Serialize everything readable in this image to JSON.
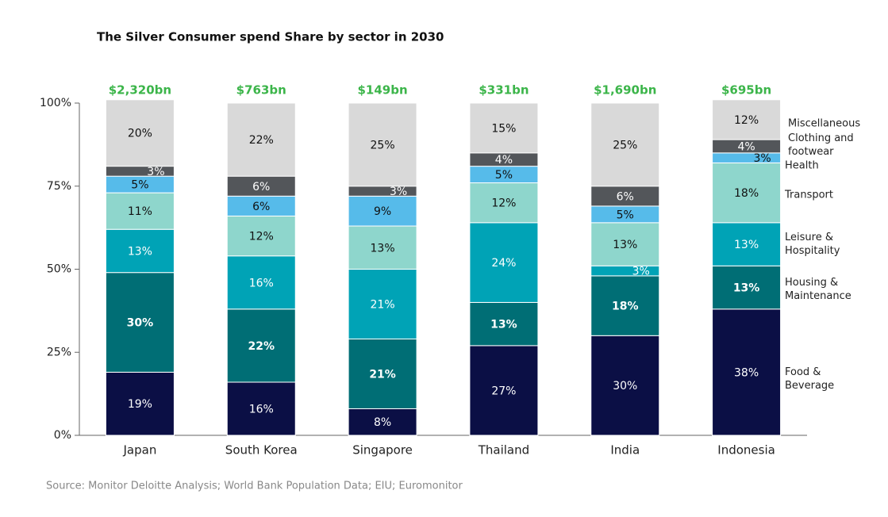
{
  "chart_data": {
    "type": "stacked_bar",
    "title": "The Silver Consumer spend Share by sector in 2030",
    "source": "Source: Monitor Deloitte Analysis; World Bank Population Data; EIU; Euromonitor",
    "categories": [
      "Japan",
      "South Korea",
      "Singapore",
      "Thailand",
      "India",
      "Indonesia"
    ],
    "totals": {
      "values": [
        2320,
        763,
        149,
        331,
        1690,
        695
      ],
      "value_labels": [
        "$2,320bn",
        "$763bn",
        "$149bn",
        "$331bn",
        "$1,690bn",
        "$695bn"
      ],
      "color": "#3cb54a"
    },
    "series": [
      {
        "name": "Food & Beverage",
        "color": "#0b0f45",
        "values": [
          19,
          16,
          8,
          27,
          30,
          38
        ],
        "value_labels": [
          "19%",
          "16%",
          "8%",
          "27%",
          "30%",
          "38%"
        ]
      },
      {
        "name": "Housing & Maintenance",
        "color": "#006e75",
        "values": [
          30,
          22,
          21,
          13,
          18,
          13
        ],
        "value_labels": [
          "30%",
          "22%",
          "21%",
          "13%",
          "18%",
          "13%"
        ]
      },
      {
        "name": "Leisure & Hospitality",
        "color": "#00a3b6",
        "values": [
          13,
          16,
          21,
          24,
          3,
          13
        ],
        "value_labels": [
          "13%",
          "16%",
          "21%",
          "24%",
          "3%",
          "13%"
        ]
      },
      {
        "name": "Transport",
        "color": "#8ed6cc",
        "values": [
          11,
          12,
          13,
          12,
          13,
          18
        ],
        "value_labels": [
          "11%",
          "12%",
          "13%",
          "12%",
          "13%",
          "18%"
        ]
      },
      {
        "name": "Health",
        "color": "#56bbea",
        "values": [
          5,
          6,
          9,
          5,
          5,
          3
        ],
        "value_labels": [
          "5%",
          "6%",
          "9%",
          "5%",
          "5%",
          "3%"
        ]
      },
      {
        "name": "Clothing and footwear",
        "color": "#53565a",
        "values": [
          3,
          6,
          3,
          4,
          6,
          4
        ],
        "value_labels": [
          "3%",
          "6%",
          "3%",
          "4%",
          "6%",
          "4%"
        ]
      },
      {
        "name": "Miscellaneous",
        "color": "#d9d9d9",
        "values": [
          20,
          22,
          25,
          15,
          25,
          12
        ],
        "value_labels": [
          "20%",
          "22%",
          "25%",
          "15%",
          "25%",
          "12%"
        ]
      }
    ],
    "ylim": [
      0,
      100
    ],
    "yticks": [
      {
        "value": 0,
        "label": "0%"
      },
      {
        "value": 25,
        "label": "25%"
      },
      {
        "value": 50,
        "label": "50%"
      },
      {
        "value": 75,
        "label": "75%"
      },
      {
        "value": 100,
        "label": "100%"
      }
    ]
  }
}
